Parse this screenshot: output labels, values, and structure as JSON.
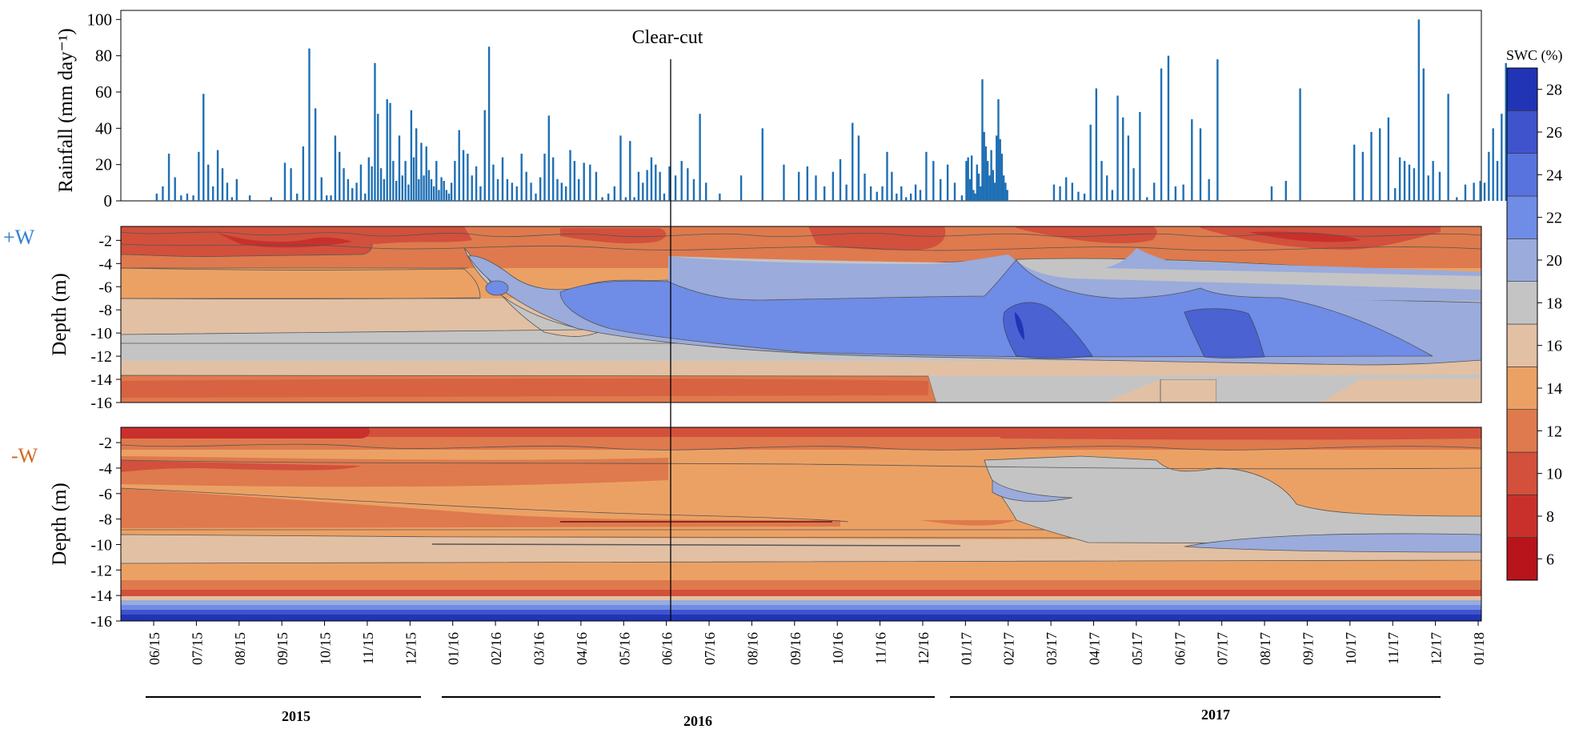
{
  "chart_data": [
    {
      "type": "bar",
      "ylabel": "Rainfall (mm day⁻¹)",
      "ylim": [
        0,
        105
      ],
      "yticks": [
        0,
        20,
        40,
        60,
        80,
        100
      ],
      "annotation": "Clear-cut",
      "annotation_date": "06/16",
      "color": "#1f6fb4",
      "rain_events": [
        [
          "06/15",
          4
        ],
        [
          "06/15",
          8
        ],
        [
          "06/15",
          26
        ],
        [
          "06/15",
          13
        ],
        [
          "06/15",
          3
        ],
        [
          "06/15",
          4
        ],
        [
          "06/15",
          3
        ],
        [
          "07/15",
          27
        ],
        [
          "07/15",
          59
        ],
        [
          "07/15",
          20
        ],
        [
          "07/15",
          8
        ],
        [
          "07/15",
          28
        ],
        [
          "07/15",
          18
        ],
        [
          "07/15",
          10
        ],
        [
          "07/15",
          2
        ],
        [
          "07/15",
          12
        ],
        [
          "08/15",
          3
        ],
        [
          "08/15",
          2
        ],
        [
          "09/15",
          21
        ],
        [
          "09/15",
          18
        ],
        [
          "09/15",
          4
        ],
        [
          "09/15",
          30
        ],
        [
          "09/15",
          84
        ],
        [
          "09/15",
          51
        ],
        [
          "09/15",
          13
        ],
        [
          "10/15",
          3
        ],
        [
          "10/15",
          3
        ],
        [
          "10/15",
          36
        ],
        [
          "10/15",
          27
        ],
        [
          "10/15",
          18
        ],
        [
          "10/15",
          12
        ],
        [
          "10/15",
          7
        ],
        [
          "10/15",
          10
        ],
        [
          "10/15",
          20
        ],
        [
          "10/15",
          4
        ],
        [
          "11/15",
          24
        ],
        [
          "11/15",
          19
        ],
        [
          "11/15",
          76
        ],
        [
          "11/15",
          48
        ],
        [
          "11/15",
          18
        ],
        [
          "11/15",
          12
        ],
        [
          "11/15",
          56
        ],
        [
          "11/15",
          54
        ],
        [
          "11/15",
          22
        ],
        [
          "11/15",
          11
        ],
        [
          "11/15",
          36
        ],
        [
          "11/15",
          14
        ],
        [
          "11/15",
          22
        ],
        [
          "11/15",
          9
        ],
        [
          "12/15",
          50
        ],
        [
          "12/15",
          24
        ],
        [
          "12/15",
          40
        ],
        [
          "12/15",
          12
        ],
        [
          "12/15",
          32
        ],
        [
          "12/15",
          14
        ],
        [
          "12/15",
          30
        ],
        [
          "12/15",
          17
        ],
        [
          "12/15",
          12
        ],
        [
          "12/15",
          8
        ],
        [
          "12/15",
          22
        ],
        [
          "12/15",
          6
        ],
        [
          "12/15",
          13
        ],
        [
          "12/15",
          11
        ],
        [
          "12/15",
          6
        ],
        [
          "12/15",
          4
        ],
        [
          "12/15",
          10
        ],
        [
          "01/16",
          22
        ],
        [
          "01/16",
          39
        ],
        [
          "01/16",
          28
        ],
        [
          "01/16",
          26
        ],
        [
          "01/16",
          14
        ],
        [
          "01/16",
          19
        ],
        [
          "01/16",
          8
        ],
        [
          "01/16",
          50
        ],
        [
          "01/16",
          85
        ],
        [
          "01/16",
          20
        ],
        [
          "02/16",
          12
        ],
        [
          "02/16",
          24
        ],
        [
          "02/16",
          12
        ],
        [
          "02/16",
          10
        ],
        [
          "02/16",
          8
        ],
        [
          "02/16",
          26
        ],
        [
          "02/16",
          16
        ],
        [
          "02/16",
          10
        ],
        [
          "02/16",
          4
        ],
        [
          "03/16",
          13
        ],
        [
          "03/16",
          26
        ],
        [
          "03/16",
          47
        ],
        [
          "03/16",
          24
        ],
        [
          "03/16",
          12
        ],
        [
          "03/16",
          10
        ],
        [
          "03/16",
          8
        ],
        [
          "03/16",
          28
        ],
        [
          "03/16",
          22
        ],
        [
          "03/16",
          12
        ],
        [
          "04/16",
          21
        ],
        [
          "04/16",
          20
        ],
        [
          "04/16",
          16
        ],
        [
          "04/16",
          2
        ],
        [
          "04/16",
          4
        ],
        [
          "04/16",
          8
        ],
        [
          "04/16",
          36
        ],
        [
          "05/16",
          2
        ],
        [
          "05/16",
          33
        ],
        [
          "05/16",
          2
        ],
        [
          "05/16",
          16
        ],
        [
          "05/16",
          10
        ],
        [
          "05/16",
          17
        ],
        [
          "05/16",
          24
        ],
        [
          "05/16",
          20
        ],
        [
          "05/16",
          16
        ],
        [
          "05/16",
          4
        ],
        [
          "06/16",
          19
        ],
        [
          "06/16",
          14
        ],
        [
          "06/16",
          22
        ],
        [
          "06/16",
          18
        ],
        [
          "06/16",
          12
        ],
        [
          "06/16",
          48
        ],
        [
          "06/16",
          10
        ],
        [
          "07/16",
          4
        ],
        [
          "07/16",
          14
        ],
        [
          "08/16",
          40
        ],
        [
          "08/16",
          20
        ],
        [
          "09/16",
          16
        ],
        [
          "09/16",
          19
        ],
        [
          "09/16",
          14
        ],
        [
          "09/16",
          8
        ],
        [
          "09/16",
          16
        ],
        [
          "10/16",
          23
        ],
        [
          "10/16",
          9
        ],
        [
          "10/16",
          43
        ],
        [
          "10/16",
          36
        ],
        [
          "10/16",
          15
        ],
        [
          "10/16",
          8
        ],
        [
          "10/16",
          5
        ],
        [
          "11/16",
          8
        ],
        [
          "11/16",
          27
        ],
        [
          "11/16",
          16
        ],
        [
          "11/16",
          4
        ],
        [
          "11/16",
          8
        ],
        [
          "11/16",
          2
        ],
        [
          "11/16",
          4
        ],
        [
          "11/16",
          9
        ],
        [
          "11/16",
          6
        ],
        [
          "12/16",
          27
        ],
        [
          "12/16",
          22
        ],
        [
          "12/16",
          12
        ],
        [
          "12/16",
          20
        ],
        [
          "12/16",
          10
        ],
        [
          "12/16",
          3
        ],
        [
          "01/17",
          22
        ],
        [
          "01/17",
          24
        ],
        [
          "01/17",
          12
        ],
        [
          "01/17",
          25
        ],
        [
          "01/17",
          6
        ],
        [
          "01/17",
          4
        ],
        [
          "01/17",
          20
        ],
        [
          "01/17",
          15
        ],
        [
          "01/17",
          8
        ],
        [
          "01/17",
          67
        ],
        [
          "01/17",
          38
        ],
        [
          "01/17",
          30
        ],
        [
          "01/17",
          22
        ],
        [
          "01/17",
          14
        ],
        [
          "01/17",
          28
        ],
        [
          "01/17",
          17
        ],
        [
          "01/17",
          10
        ],
        [
          "01/17",
          36
        ],
        [
          "01/17",
          56
        ],
        [
          "01/17",
          34
        ],
        [
          "01/17",
          26
        ],
        [
          "01/17",
          14
        ],
        [
          "01/17",
          10
        ],
        [
          "01/17",
          6
        ],
        [
          "03/17",
          9
        ],
        [
          "03/17",
          8
        ],
        [
          "03/17",
          13
        ],
        [
          "03/17",
          10
        ],
        [
          "03/17",
          5
        ],
        [
          "03/17",
          4
        ],
        [
          "03/17",
          42
        ],
        [
          "04/17",
          62
        ],
        [
          "04/17",
          22
        ],
        [
          "04/17",
          14
        ],
        [
          "04/17",
          6
        ],
        [
          "04/17",
          58
        ],
        [
          "04/17",
          46
        ],
        [
          "04/17",
          36
        ],
        [
          "04/17",
          18
        ],
        [
          "05/17",
          49
        ],
        [
          "05/17",
          2
        ],
        [
          "05/17",
          10
        ],
        [
          "05/17",
          73
        ],
        [
          "05/17",
          80
        ],
        [
          "05/17",
          8
        ],
        [
          "06/17",
          9
        ],
        [
          "06/17",
          45
        ],
        [
          "06/17",
          40
        ],
        [
          "06/17",
          12
        ],
        [
          "06/17",
          78
        ],
        [
          "08/17",
          8
        ],
        [
          "08/17",
          11
        ],
        [
          "08/17",
          62
        ],
        [
          "10/17",
          31
        ],
        [
          "10/17",
          27
        ],
        [
          "10/17",
          38
        ],
        [
          "10/17",
          40
        ],
        [
          "10/17",
          46
        ],
        [
          "11/17",
          7
        ],
        [
          "11/17",
          24
        ],
        [
          "11/17",
          22
        ],
        [
          "11/17",
          20
        ],
        [
          "11/17",
          18
        ],
        [
          "11/17",
          100
        ],
        [
          "11/17",
          73
        ],
        [
          "11/17",
          14
        ],
        [
          "11/17",
          22
        ],
        [
          "12/17",
          16
        ],
        [
          "12/17",
          59
        ],
        [
          "12/17",
          2
        ],
        [
          "12/17",
          9
        ],
        [
          "12/17",
          10
        ],
        [
          "01/18",
          11
        ],
        [
          "01/18",
          10
        ],
        [
          "01/18",
          27
        ],
        [
          "01/18",
          40
        ],
        [
          "01/18",
          22
        ],
        [
          "01/18",
          48
        ],
        [
          "01/18",
          76
        ],
        [
          "01/18",
          11
        ],
        [
          "01/18",
          24
        ],
        [
          "01/18",
          22
        ]
      ]
    },
    {
      "type": "heatmap",
      "label": "+W",
      "label_color": "#2f7fd0",
      "ylabel": "Depth (m)",
      "ylim": [
        -16,
        -0.8
      ],
      "yticks": [
        -2,
        -4,
        -6,
        -8,
        -10,
        -12,
        -14,
        -16
      ]
    },
    {
      "type": "heatmap",
      "label": "-W",
      "label_color": "#d2691e",
      "ylabel": "Depth (m)",
      "ylim": [
        -16,
        -0.8
      ],
      "yticks": [
        -2,
        -4,
        -6,
        -8,
        -10,
        -12,
        -14,
        -16
      ]
    }
  ],
  "x_axis": {
    "tick_labels": [
      "06/15",
      "07/15",
      "08/15",
      "09/15",
      "10/15",
      "11/15",
      "12/15",
      "01/16",
      "02/16",
      "03/16",
      "04/16",
      "05/16",
      "06/16",
      "07/16",
      "08/16",
      "09/16",
      "10/16",
      "11/16",
      "12/16",
      "01/17",
      "02/17",
      "03/17",
      "04/17",
      "05/17",
      "06/17",
      "07/17",
      "08/17",
      "09/17",
      "10/17",
      "11/17",
      "12/17",
      "01/18"
    ],
    "years": [
      "2015",
      "2016",
      "2017"
    ]
  },
  "colorbar": {
    "title": "SWC (%)",
    "min": 5,
    "max": 29,
    "tick_labels": [
      "6",
      "8",
      "10",
      "12",
      "14",
      "16",
      "18",
      "20",
      "22",
      "24",
      "26",
      "28"
    ],
    "levels": [
      {
        "from": 5,
        "to": 7,
        "color": "#b8141c"
      },
      {
        "from": 7,
        "to": 9,
        "color": "#c9302c"
      },
      {
        "from": 9,
        "to": 11,
        "color": "#d2503c"
      },
      {
        "from": 11,
        "to": 13,
        "color": "#de7a4d"
      },
      {
        "from": 13,
        "to": 15,
        "color": "#eca164"
      },
      {
        "from": 15,
        "to": 17,
        "color": "#e2c0a4"
      },
      {
        "from": 17,
        "to": 19,
        "color": "#c4c4c4"
      },
      {
        "from": 19,
        "to": 21,
        "color": "#9aabdc"
      },
      {
        "from": 21,
        "to": 23,
        "color": "#6f8ce6"
      },
      {
        "from": 23,
        "to": 25,
        "color": "#5873de"
      },
      {
        "from": 25,
        "to": 27,
        "color": "#3f54cc"
      },
      {
        "from": 27,
        "to": 29,
        "color": "#2134b6"
      }
    ]
  }
}
